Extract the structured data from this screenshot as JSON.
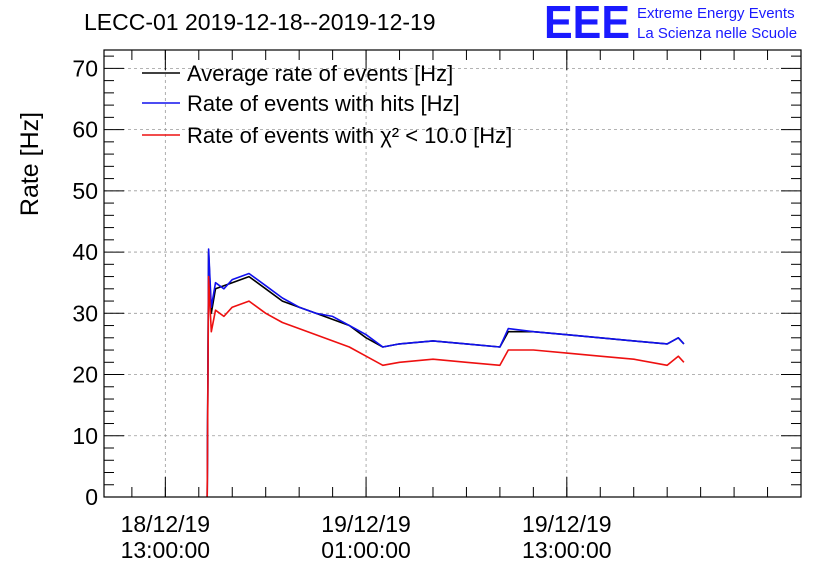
{
  "header": {
    "logo": "EEE",
    "org_line1": "Extreme Energy Events",
    "org_line2": "La Scienza nelle Scuole",
    "logo_color": "#1a1aff"
  },
  "chart_data": {
    "type": "line",
    "title": "LECC-01 2019-12-18--2019-12-19",
    "ylabel": "Rate [Hz]",
    "xlabel": "",
    "ylim": [
      0,
      73
    ],
    "yticks": [
      0,
      10,
      20,
      30,
      40,
      50,
      60,
      70
    ],
    "xlim": [
      "2019-12-18 09:20",
      "2019-12-20 03:00"
    ],
    "xticks": [
      {
        "date": "18/12/19",
        "time": "13:00:00",
        "at": "2019-12-18 13:00"
      },
      {
        "date": "19/12/19",
        "time": "01:00:00",
        "at": "2019-12-19 01:00"
      },
      {
        "date": "19/12/19",
        "time": "13:00:00",
        "at": "2019-12-19 13:00"
      }
    ],
    "grid": true,
    "legend_position": "top-left",
    "series": [
      {
        "name": "Average rate of events [Hz]",
        "color": "#000000",
        "points": [
          [
            "2019-12-18 15:30",
            0
          ],
          [
            "2019-12-18 15:35",
            40
          ],
          [
            "2019-12-18 15:45",
            30
          ],
          [
            "2019-12-18 16:00",
            34
          ],
          [
            "2019-12-18 17:00",
            35
          ],
          [
            "2019-12-18 18:00",
            36
          ],
          [
            "2019-12-18 19:00",
            34
          ],
          [
            "2019-12-18 20:00",
            32
          ],
          [
            "2019-12-18 21:00",
            31
          ],
          [
            "2019-12-18 22:00",
            30
          ],
          [
            "2019-12-18 23:00",
            29
          ],
          [
            "2019-12-19 00:00",
            28
          ],
          [
            "2019-12-19 01:00",
            26
          ],
          [
            "2019-12-19 02:00",
            24.5
          ],
          [
            "2019-12-19 03:00",
            25
          ],
          [
            "2019-12-19 05:00",
            25.5
          ],
          [
            "2019-12-19 07:00",
            25
          ],
          [
            "2019-12-19 09:00",
            24.5
          ],
          [
            "2019-12-19 09:30",
            27
          ],
          [
            "2019-12-19 11:00",
            27
          ],
          [
            "2019-12-19 13:00",
            26.5
          ],
          [
            "2019-12-19 15:00",
            26
          ],
          [
            "2019-12-19 17:00",
            25.5
          ],
          [
            "2019-12-19 19:00",
            25
          ],
          [
            "2019-12-19 19:40",
            26
          ],
          [
            "2019-12-19 20:00",
            25
          ]
        ]
      },
      {
        "name": "Rate of events with hits [Hz]",
        "color": "#1010ee",
        "points": [
          [
            "2019-12-18 15:30",
            0
          ],
          [
            "2019-12-18 15:35",
            40.5
          ],
          [
            "2019-12-18 15:45",
            31
          ],
          [
            "2019-12-18 16:00",
            35
          ],
          [
            "2019-12-18 16:30",
            34
          ],
          [
            "2019-12-18 17:00",
            35.5
          ],
          [
            "2019-12-18 18:00",
            36.5
          ],
          [
            "2019-12-18 19:00",
            34.5
          ],
          [
            "2019-12-18 20:00",
            32.5
          ],
          [
            "2019-12-18 21:00",
            31
          ],
          [
            "2019-12-18 22:00",
            30
          ],
          [
            "2019-12-18 23:00",
            29.5
          ],
          [
            "2019-12-19 00:00",
            28
          ],
          [
            "2019-12-19 01:00",
            26.5
          ],
          [
            "2019-12-19 02:00",
            24.5
          ],
          [
            "2019-12-19 03:00",
            25
          ],
          [
            "2019-12-19 05:00",
            25.5
          ],
          [
            "2019-12-19 07:00",
            25
          ],
          [
            "2019-12-19 09:00",
            24.5
          ],
          [
            "2019-12-19 09:30",
            27.5
          ],
          [
            "2019-12-19 11:00",
            27
          ],
          [
            "2019-12-19 13:00",
            26.5
          ],
          [
            "2019-12-19 15:00",
            26
          ],
          [
            "2019-12-19 17:00",
            25.5
          ],
          [
            "2019-12-19 19:00",
            25
          ],
          [
            "2019-12-19 19:40",
            26
          ],
          [
            "2019-12-19 20:00",
            25
          ]
        ]
      },
      {
        "name": "Rate of events with χ² < 10.0 [Hz]",
        "color": "#ee1010",
        "points": [
          [
            "2019-12-18 15:30",
            0
          ],
          [
            "2019-12-18 15:35",
            36
          ],
          [
            "2019-12-18 15:45",
            27
          ],
          [
            "2019-12-18 16:00",
            30.5
          ],
          [
            "2019-12-18 16:30",
            29.5
          ],
          [
            "2019-12-18 17:00",
            31
          ],
          [
            "2019-12-18 18:00",
            32
          ],
          [
            "2019-12-18 19:00",
            30
          ],
          [
            "2019-12-18 20:00",
            28.5
          ],
          [
            "2019-12-18 21:00",
            27.5
          ],
          [
            "2019-12-18 22:00",
            26.5
          ],
          [
            "2019-12-18 23:00",
            25.5
          ],
          [
            "2019-12-19 00:00",
            24.5
          ],
          [
            "2019-12-19 01:00",
            23
          ],
          [
            "2019-12-19 02:00",
            21.5
          ],
          [
            "2019-12-19 03:00",
            22
          ],
          [
            "2019-12-19 05:00",
            22.5
          ],
          [
            "2019-12-19 07:00",
            22
          ],
          [
            "2019-12-19 09:00",
            21.5
          ],
          [
            "2019-12-19 09:30",
            24
          ],
          [
            "2019-12-19 11:00",
            24
          ],
          [
            "2019-12-19 13:00",
            23.5
          ],
          [
            "2019-12-19 15:00",
            23
          ],
          [
            "2019-12-19 17:00",
            22.5
          ],
          [
            "2019-12-19 19:00",
            21.5
          ],
          [
            "2019-12-19 19:40",
            23
          ],
          [
            "2019-12-19 20:00",
            22
          ]
        ]
      }
    ]
  }
}
